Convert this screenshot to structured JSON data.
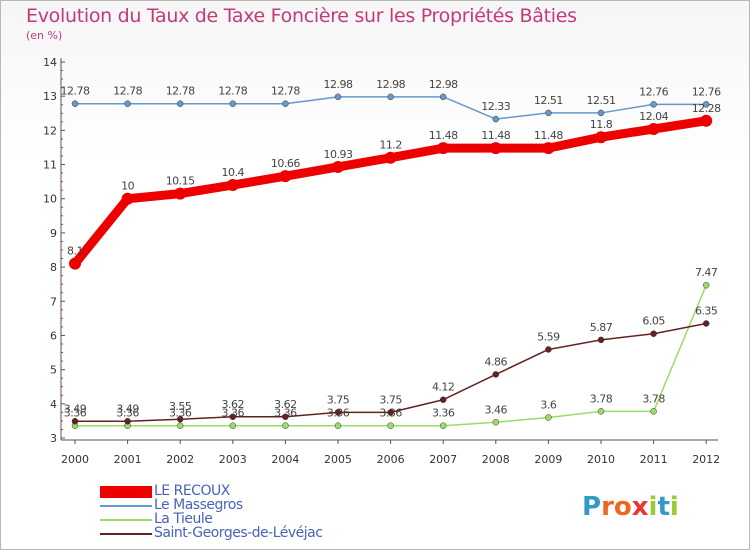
{
  "title": "Evolution du Taux de Taxe Foncière sur les Propriétés Bâties",
  "subtitle": "(en %)",
  "logo": "Proxiti",
  "chart_data": {
    "type": "line",
    "title": "Evolution du Taux de Taxe Foncière sur les Propriétés Bâties",
    "ylabel": "(en %)",
    "categories": [
      "2000",
      "2001",
      "2002",
      "2003",
      "2004",
      "2005",
      "2006",
      "2007",
      "2008",
      "2009",
      "2010",
      "2011",
      "2012"
    ],
    "ylim": [
      3,
      14
    ],
    "yticks": [
      3,
      4,
      5,
      6,
      7,
      8,
      9,
      10,
      11,
      12,
      13,
      14
    ],
    "series": [
      {
        "name": "LE RECOUX",
        "color": "#ee0000",
        "values": [
          8.1,
          10,
          10.15,
          10.4,
          10.66,
          10.93,
          11.2,
          11.48,
          11.48,
          11.48,
          11.8,
          12.04,
          12.28
        ],
        "labels": [
          "8.1",
          "10",
          "10.15",
          "10.4",
          "10.66",
          "10.93",
          "11.2",
          "11.48",
          "11.48",
          "11.48",
          "11.8",
          "12.04",
          "12.28"
        ]
      },
      {
        "name": "Le Massegros",
        "color": "#6699cc",
        "values": [
          12.78,
          12.78,
          12.78,
          12.78,
          12.78,
          12.98,
          12.98,
          12.98,
          12.33,
          12.51,
          12.51,
          12.76,
          12.76
        ],
        "labels": [
          "12.78",
          "12.78",
          "12.78",
          "12.78",
          "12.78",
          "12.98",
          "12.98",
          "12.98",
          "12.33",
          "12.51",
          "12.51",
          "12.76",
          "12.76"
        ]
      },
      {
        "name": "La Tieule",
        "color": "#99dd66",
        "values": [
          3.36,
          3.36,
          3.36,
          3.36,
          3.36,
          3.36,
          3.36,
          3.36,
          3.46,
          3.6,
          3.78,
          3.78,
          7.47
        ],
        "labels": [
          "3.36",
          "3.36",
          "3.36",
          "3.36",
          "3.36",
          "3.36",
          "3.36",
          "3.36",
          "3.46",
          "3.6",
          "3.78",
          "3.78",
          "7.47"
        ]
      },
      {
        "name": "Saint-Georges-de-Lévéjac",
        "color": "#662222",
        "values": [
          3.49,
          3.49,
          3.55,
          3.62,
          3.62,
          3.75,
          3.75,
          4.12,
          4.86,
          5.59,
          5.87,
          6.05,
          6.35
        ],
        "labels": [
          "3.49",
          "3.49",
          "3.55",
          "3.62",
          "3.62",
          "3.75",
          "3.75",
          "4.12",
          "4.86",
          "5.59",
          "5.87",
          "6.05",
          "6.35"
        ]
      }
    ],
    "grid": false,
    "legend": "bottom-left"
  }
}
